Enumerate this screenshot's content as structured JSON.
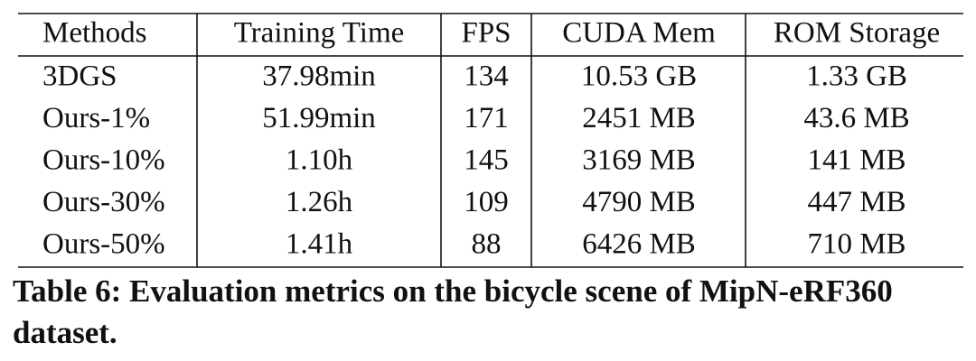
{
  "table": {
    "header": [
      "Methods",
      "Training Time",
      "FPS",
      "CUDA Mem",
      "ROM Storage"
    ],
    "rows": [
      [
        "3DGS",
        "37.98min",
        "134",
        "10.53 GB",
        "1.33 GB"
      ],
      [
        "Ours-1%",
        "51.99min",
        "171",
        "2451 MB",
        "43.6 MB"
      ],
      [
        "Ours-10%",
        "1.10h",
        "145",
        "3169 MB",
        "141 MB"
      ],
      [
        "Ours-30%",
        "1.26h",
        "109",
        "4790 MB",
        "447 MB"
      ],
      [
        "Ours-50%",
        "1.41h",
        "88",
        "6426 MB",
        "710 MB"
      ]
    ]
  },
  "caption": "Table 6: Evaluation metrics on the bicycle scene of MipN-eRF360 dataset."
}
